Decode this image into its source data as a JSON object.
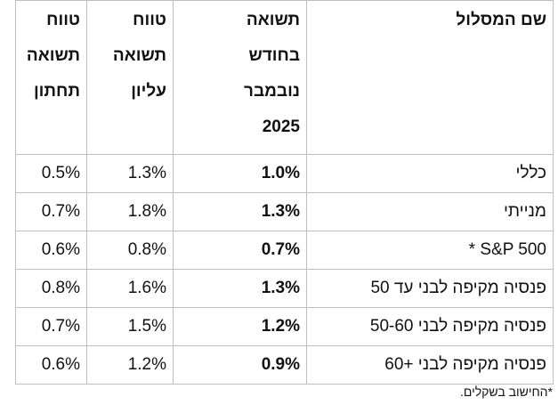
{
  "table": {
    "header": [
      "שם המסלול",
      "תשואה בחודש נובמבר 2025",
      "טווח תשואה עליון",
      "טווח תשואה תחתון"
    ],
    "rows": [
      [
        "כללי",
        "1.0%",
        "1.3%",
        "0.5%"
      ],
      [
        "מנייתי",
        "1.3%",
        "1.8%",
        "0.7%"
      ],
      [
        "S&P 500  *",
        "0.7%",
        "0.8%",
        "0.6%"
      ],
      [
        "פנסיה מקיפה לבני עד 50",
        "1.3%",
        "1.6%",
        "0.8%"
      ],
      [
        "פנסיה מקיפה לבני 50-60",
        "1.2%",
        "1.5%",
        "0.7%"
      ],
      [
        "פנסיה מקיפה לבני +60",
        "0.9%",
        "1.2%",
        "0.6%"
      ]
    ]
  },
  "footnote": "*החישוב בשקלים."
}
